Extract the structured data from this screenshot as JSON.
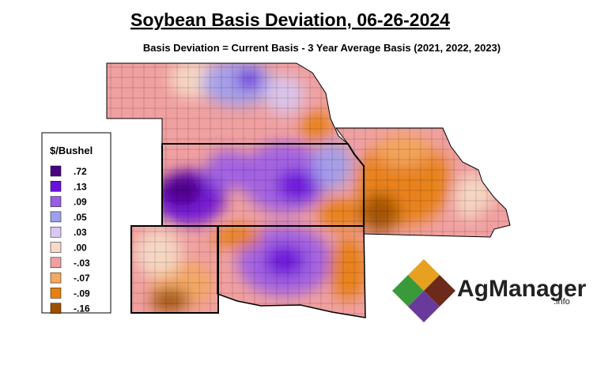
{
  "header": {
    "title": "Soybean Basis Deviation, 06-26-2024",
    "subtitle": "Basis Deviation = Current Basis - 3 Year Average Basis (2021, 2022, 2023)"
  },
  "legend": {
    "title": "$/Bushel",
    "items": [
      {
        "label": ".72",
        "color": "#4b0082"
      },
      {
        "label": ".13",
        "color": "#6a10dc"
      },
      {
        "label": ".09",
        "color": "#9b5ce8"
      },
      {
        "label": ".05",
        "color": "#9f9ff0"
      },
      {
        "label": ".03",
        "color": "#d8c8f2"
      },
      {
        "label": ".00",
        "color": "#f6dcc8"
      },
      {
        "label": "-.03",
        "color": "#f0a0a0"
      },
      {
        "label": "-.07",
        "color": "#f4a860"
      },
      {
        "label": "-.09",
        "color": "#e88010"
      },
      {
        "label": "-.16",
        "color": "#9c5000"
      }
    ]
  },
  "logo": {
    "name": "AgManager",
    "suffix": ".info"
  }
}
